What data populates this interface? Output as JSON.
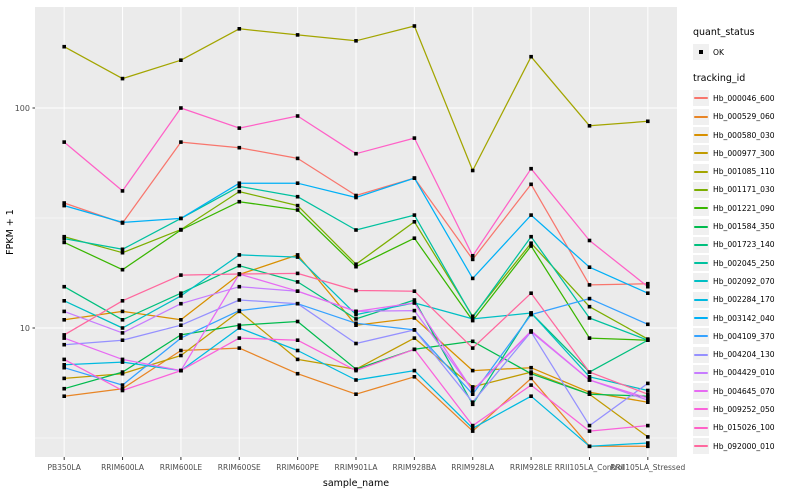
{
  "figure": {
    "x_label": "sample_name",
    "y_label": "FPKM + 1",
    "y_tick_labels": [
      "100",
      "10"
    ]
  },
  "legend": {
    "quant_status_title": "quant_status",
    "quant_status_items": [
      {
        "label": "OK",
        "marker": "black-square-point"
      }
    ],
    "tracking_title": "tracking_id"
  },
  "colors": {
    "panel_bg": "#EBEBEB",
    "grid": "#FFFFFF",
    "tick_text": "#4D4D4D",
    "axis_title_text": "#000000",
    "marker": "#000000",
    "legend_key_bg": "#F0F0F0"
  },
  "chart_data": {
    "type": "line",
    "title": "",
    "xlabel": "sample_name",
    "ylabel": "FPKM + 1",
    "log_scale_y": true,
    "ylim": [
      2.6,
      280
    ],
    "y_major_gridlines": [
      10,
      100
    ],
    "y_minor_gridlines": [
      3.162,
      31.62
    ],
    "y_ticks": [
      10,
      100
    ],
    "legend_position": "right",
    "grid": true,
    "point_marker": "small black square (quant_status = OK)",
    "categories": [
      "PB350LA",
      "RRIM600LA",
      "RRIM600LE",
      "RRIM600SE",
      "RRIM600PE",
      "RRIM901LA",
      "RRIM928BA",
      "RRIM928LA",
      "RRIM928LE",
      "RRII105LA_Control",
      "RRII105LA_Stressed"
    ],
    "series": [
      {
        "name": "Hb_000046_600",
        "color": "#F8766D",
        "values": [
          37,
          30,
          70,
          66,
          59,
          40,
          48,
          20.5,
          45,
          15.7,
          15.9
        ]
      },
      {
        "name": "Hb_000529_060",
        "color": "#E88526",
        "values": [
          4.9,
          5.3,
          7.9,
          8.1,
          6.2,
          5.0,
          6.0,
          3.4,
          5.9,
          2.9,
          2.9
        ]
      },
      {
        "name": "Hb_000580_030",
        "color": "#D89000",
        "values": [
          10.9,
          11.9,
          10.9,
          17.5,
          21.5,
          10.3,
          11.1,
          6.4,
          6.6,
          5.1,
          4.6
        ]
      },
      {
        "name": "Hb_000977_300",
        "color": "#C09B00",
        "values": [
          5.9,
          6.2,
          7.5,
          11.9,
          7.2,
          6.5,
          9.0,
          5.4,
          6.3,
          5.0,
          3.2
        ]
      },
      {
        "name": "Hb_001085_110",
        "color": "#A3A500",
        "values": [
          190,
          136,
          165,
          229,
          215,
          202,
          236,
          52,
          171,
          83,
          87
        ]
      },
      {
        "name": "Hb_001171_030",
        "color": "#7CAE00",
        "values": [
          26,
          22,
          28,
          41.7,
          36,
          19.5,
          30.4,
          11.3,
          24.3,
          12.5,
          8.9
        ]
      },
      {
        "name": "Hb_001221_090",
        "color": "#39B600",
        "values": [
          24.5,
          18.4,
          27.9,
          37.5,
          34.4,
          19.0,
          25.6,
          10.8,
          23.6,
          9.0,
          8.8
        ]
      },
      {
        "name": "Hb_001584_350",
        "color": "#00BB4E",
        "values": [
          5.3,
          6.3,
          9.3,
          10.3,
          10.7,
          6.5,
          8.0,
          8.7,
          6.2,
          5.0,
          4.9
        ]
      },
      {
        "name": "Hb_001723_140",
        "color": "#00BF7D",
        "values": [
          15.4,
          10.9,
          14.4,
          19.2,
          16.2,
          11.0,
          13.4,
          4.5,
          11.7,
          6.3,
          8.8
        ]
      },
      {
        "name": "Hb_002045_250",
        "color": "#00C19F",
        "values": [
          25.5,
          22.8,
          31.5,
          44,
          39.5,
          27.9,
          32.6,
          11.2,
          26,
          11.1,
          8.8
        ]
      },
      {
        "name": "Hb_002092_070",
        "color": "#00BFC4",
        "values": [
          13.3,
          10.0,
          14.0,
          21.5,
          21.0,
          11.5,
          13.0,
          11.0,
          11.7,
          6.0,
          5.2
        ]
      },
      {
        "name": "Hb_002284_170",
        "color": "#00BAE0",
        "values": [
          6.8,
          7.0,
          6.4,
          10.0,
          7.9,
          5.8,
          6.4,
          3.5,
          4.9,
          2.9,
          3.0
        ]
      },
      {
        "name": "Hb_003142_040",
        "color": "#00B0F6",
        "values": [
          36,
          30.2,
          31.5,
          45.5,
          45.5,
          39.2,
          48,
          16.8,
          32.6,
          18.9,
          14.4
        ]
      },
      {
        "name": "Hb_004109_370",
        "color": "#35A2FF",
        "values": [
          6.6,
          5.5,
          9.0,
          12.0,
          12.9,
          10.5,
          9.8,
          5.0,
          11.5,
          13.6,
          10.4
        ]
      },
      {
        "name": "Hb_004204_130",
        "color": "#9590FF",
        "values": [
          8.4,
          8.8,
          10.3,
          13.4,
          12.9,
          8.5,
          9.8,
          4.6,
          9.6,
          3.6,
          5.6
        ]
      },
      {
        "name": "Hb_004429_010",
        "color": "#C77CFF",
        "values": [
          11.9,
          9.5,
          12.9,
          15.4,
          14.7,
          11.9,
          12.0,
          5.2,
          9.6,
          5.8,
          4.7
        ]
      },
      {
        "name": "Hb_004645_070",
        "color": "#E76BF3",
        "values": [
          9.0,
          7.2,
          6.4,
          17.6,
          14.7,
          11.9,
          13.0,
          5.2,
          9.7,
          5.8,
          4.8
        ]
      },
      {
        "name": "Hb_009252_050",
        "color": "#FA62DB",
        "values": [
          7.2,
          5.2,
          6.4,
          9.0,
          8.8,
          6.4,
          8.0,
          3.6,
          5.5,
          3.4,
          3.6
        ]
      },
      {
        "name": "Hb_015026_100",
        "color": "#FF61C7",
        "values": [
          70,
          42,
          100,
          81,
          92,
          62,
          73,
          21.3,
          53,
          25,
          15.4
        ]
      },
      {
        "name": "Hb_092000_010",
        "color": "#FF689E",
        "values": [
          9.3,
          13.3,
          17.4,
          17.6,
          17.7,
          14.8,
          14.7,
          8.1,
          14.4,
          6.3,
          5.0
        ]
      }
    ]
  }
}
